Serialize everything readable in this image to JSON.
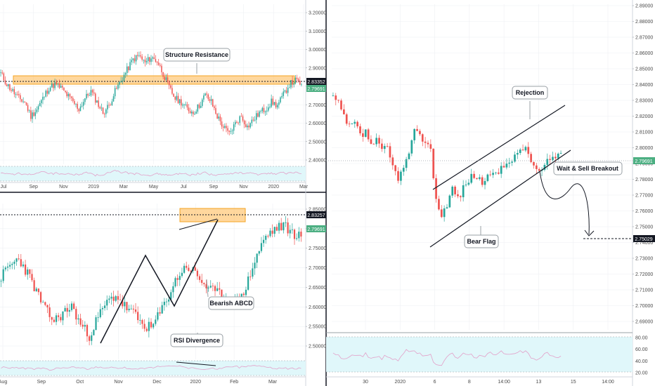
{
  "colors": {
    "up": "#26a69a",
    "down": "#ef5350",
    "zone_fill": "#ffb74d",
    "zone_stroke": "#f5a623",
    "rsi_band": "#e0f7fa",
    "rsi_line": "#e3a1c9",
    "grid": "#eef0f3",
    "divider": "#131722",
    "tag_dark": "#131722",
    "tag_green": "#4caf82"
  },
  "panels": {
    "top_left": {
      "price_ticks": [
        "3.20000",
        "3.10000",
        "3.00000",
        "2.90000",
        "2.80000",
        "2.70000",
        "2.60000",
        "2.50000",
        "2.40000"
      ],
      "time_ticks": [
        "Jul",
        "Sep",
        "Nov",
        "2019",
        "Mar",
        "May",
        "Jul",
        "Sep",
        "Nov",
        "2020",
        "Mar"
      ],
      "price_tag_dark": "2.83352",
      "price_tag_green": "2.79691",
      "annotation": "Structure Resistance"
    },
    "bottom_left": {
      "price_ticks": [
        "2.85000",
        "2.80000",
        "2.75000",
        "2.70000",
        "2.65000",
        "2.60000",
        "2.55000",
        "2.50000"
      ],
      "time_ticks": [
        "Aug",
        "Sep",
        "Oct",
        "Nov",
        "Dec",
        "2020",
        "Feb",
        "Mar"
      ],
      "price_tag_dark": "2.83257",
      "price_tag_green": "2.79691",
      "annotations": {
        "abcd": "Bearish ABCD",
        "rsi": "RSI Divergence"
      }
    },
    "right": {
      "price_ticks": [
        "2.89000",
        "2.88000",
        "2.87000",
        "2.86000",
        "2.85000",
        "2.84000",
        "2.83000",
        "2.82000",
        "2.81000",
        "2.80000",
        "2.79000",
        "2.78000",
        "2.77000",
        "2.76000",
        "2.75000",
        "2.74000",
        "2.73000",
        "2.72000",
        "2.71000",
        "2.70000",
        "2.69000"
      ],
      "time_ticks": [
        "30",
        "2020",
        "6",
        "8",
        "14:00",
        "13",
        "15",
        "14:00"
      ],
      "price_tag_green": "2.79691",
      "target_tag": "2.75029",
      "rsi_ticks": [
        "80.00",
        "60.00",
        "40.00",
        "20.00"
      ],
      "annotations": {
        "rejection": "Rejection",
        "sell": "Wait & Sell Breakout",
        "flag": "Bear Flag"
      }
    }
  },
  "chart_data": [
    {
      "type": "candlestick",
      "panel": "top_left",
      "title": "",
      "ylim": [
        2.35,
        3.25
      ],
      "close_series_approx": [
        2.86,
        2.8,
        2.76,
        2.72,
        2.7,
        2.62,
        2.66,
        2.72,
        2.78,
        2.8,
        2.78,
        2.74,
        2.7,
        2.66,
        2.72,
        2.76,
        2.7,
        2.64,
        2.68,
        2.76,
        2.82,
        2.88,
        2.94,
        2.96,
        2.92,
        2.95,
        2.93,
        2.86,
        2.78,
        2.72,
        2.7,
        2.66,
        2.64,
        2.68,
        2.74,
        2.7,
        2.62,
        2.56,
        2.52,
        2.58,
        2.62,
        2.56,
        2.6,
        2.64,
        2.66,
        2.7,
        2.68,
        2.74,
        2.8,
        2.82,
        2.8
      ],
      "resistance_zone": [
        2.815,
        2.86
      ],
      "dotted_level": 2.83352,
      "last_price": 2.79691
    },
    {
      "type": "candlestick",
      "panel": "bottom_left",
      "title": "",
      "ylim": [
        2.455,
        2.88
      ],
      "close_series_approx": [
        2.68,
        2.71,
        2.73,
        2.69,
        2.64,
        2.59,
        2.56,
        2.58,
        2.6,
        2.55,
        2.52,
        2.57,
        2.61,
        2.63,
        2.6,
        2.58,
        2.55,
        2.54,
        2.58,
        2.63,
        2.68,
        2.71,
        2.69,
        2.66,
        2.64,
        2.63,
        2.62,
        2.61,
        2.67,
        2.74,
        2.79,
        2.81,
        2.82,
        2.8,
        2.79
      ],
      "resistance_zone": [
        2.815,
        2.85
      ],
      "dotted_level": 2.83257,
      "last_price": 2.79691,
      "abcd_points": [
        [
          0.0,
          2.52
        ],
        [
          0.42,
          2.72
        ],
        [
          0.7,
          2.61
        ],
        [
          1.0,
          2.83
        ]
      ]
    },
    {
      "type": "candlestick",
      "panel": "right",
      "title": "",
      "ylim": [
        2.685,
        2.895
      ],
      "close_series_approx": [
        2.835,
        2.83,
        2.822,
        2.815,
        2.818,
        2.81,
        2.812,
        2.805,
        2.806,
        2.8,
        2.802,
        2.79,
        2.784,
        2.788,
        2.8,
        2.812,
        2.809,
        2.808,
        2.8,
        2.77,
        2.758,
        2.767,
        2.776,
        2.77,
        2.776,
        2.782,
        2.785,
        2.782,
        2.778,
        2.787,
        2.784,
        2.79,
        2.795,
        2.792,
        2.8,
        2.803,
        2.798,
        2.791,
        2.786,
        2.79,
        2.795,
        2.797,
        2.799
      ],
      "channel_upper": [
        2.779,
        2.831
      ],
      "channel_lower": [
        2.751,
        2.803
      ],
      "target": 2.75029,
      "last_price": 2.79691
    }
  ]
}
